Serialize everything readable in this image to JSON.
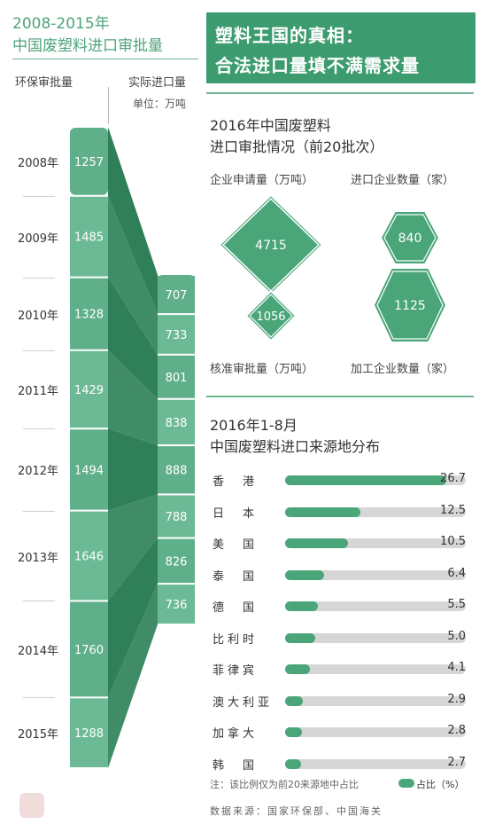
{
  "left": {
    "title_line1": "2008-2015年",
    "title_line2": "中国废塑料进口审批量",
    "col_approved": "环保审批量",
    "col_actual": "实际进口量",
    "unit": "单位：万吨",
    "years": [
      "2008年",
      "2009年",
      "2010年",
      "2011年",
      "2012年",
      "2013年",
      "2014年",
      "2015年"
    ],
    "approved": [
      1257,
      1485,
      1328,
      1429,
      1494,
      1646,
      1760,
      1288
    ],
    "actual": [
      707,
      733,
      801,
      838,
      888,
      788,
      826,
      736
    ]
  },
  "banner": {
    "line1": "塑料王国的真相：",
    "line2": "合法进口量填不满需求量"
  },
  "approval": {
    "title_line1": "2016年中国废塑料",
    "title_line2": "进口审批情况（前20批次）",
    "label_applied": "企业申请量（万吨）",
    "label_importers": "进口企业数量（家）",
    "label_approved": "核准审批量（万吨）",
    "label_processors": "加工企业数量（家）",
    "applied": 4715,
    "approved": 1056,
    "importers": 840,
    "processors": 1125
  },
  "sources": {
    "title_line1": "2016年1-8月",
    "title_line2": "中国废塑料进口来源地分布",
    "note": "注：该比例仅为前20来源地中占比",
    "legend": "占比（%）",
    "data_source": "数据来源：国家环保部、中国海关"
  },
  "chart_data": [
    {
      "type": "bar",
      "title": "2008-2015年 中国废塑料进口审批量",
      "categories": [
        "2008年",
        "2009年",
        "2010年",
        "2011年",
        "2012年",
        "2013年",
        "2014年",
        "2015年"
      ],
      "series": [
        {
          "name": "环保审批量",
          "values": [
            1257,
            1485,
            1328,
            1429,
            1494,
            1646,
            1760,
            1288
          ]
        },
        {
          "name": "实际进口量",
          "values": [
            707,
            733,
            801,
            838,
            888,
            788,
            826,
            736
          ]
        }
      ],
      "ylabel": "单位：万吨"
    },
    {
      "type": "bar",
      "title": "2016年1-8月 中国废塑料进口来源地分布",
      "categories": [
        "香　港",
        "日　本",
        "美　国",
        "泰　国",
        "德　国",
        "比利时",
        "菲律宾",
        "澳大利亚",
        "加拿大",
        "韩　国"
      ],
      "values": [
        26.7,
        12.5,
        10.5,
        6.4,
        5.5,
        5.0,
        4.1,
        2.9,
        2.8,
        2.7
      ],
      "xlim": [
        0,
        30
      ],
      "legend": "占比（%）"
    }
  ],
  "colors": {
    "primary": "#4aa579",
    "banner": "#3d9c6f",
    "stream_dark": "#2e7d57",
    "bar_track": "#d6d6d6"
  }
}
